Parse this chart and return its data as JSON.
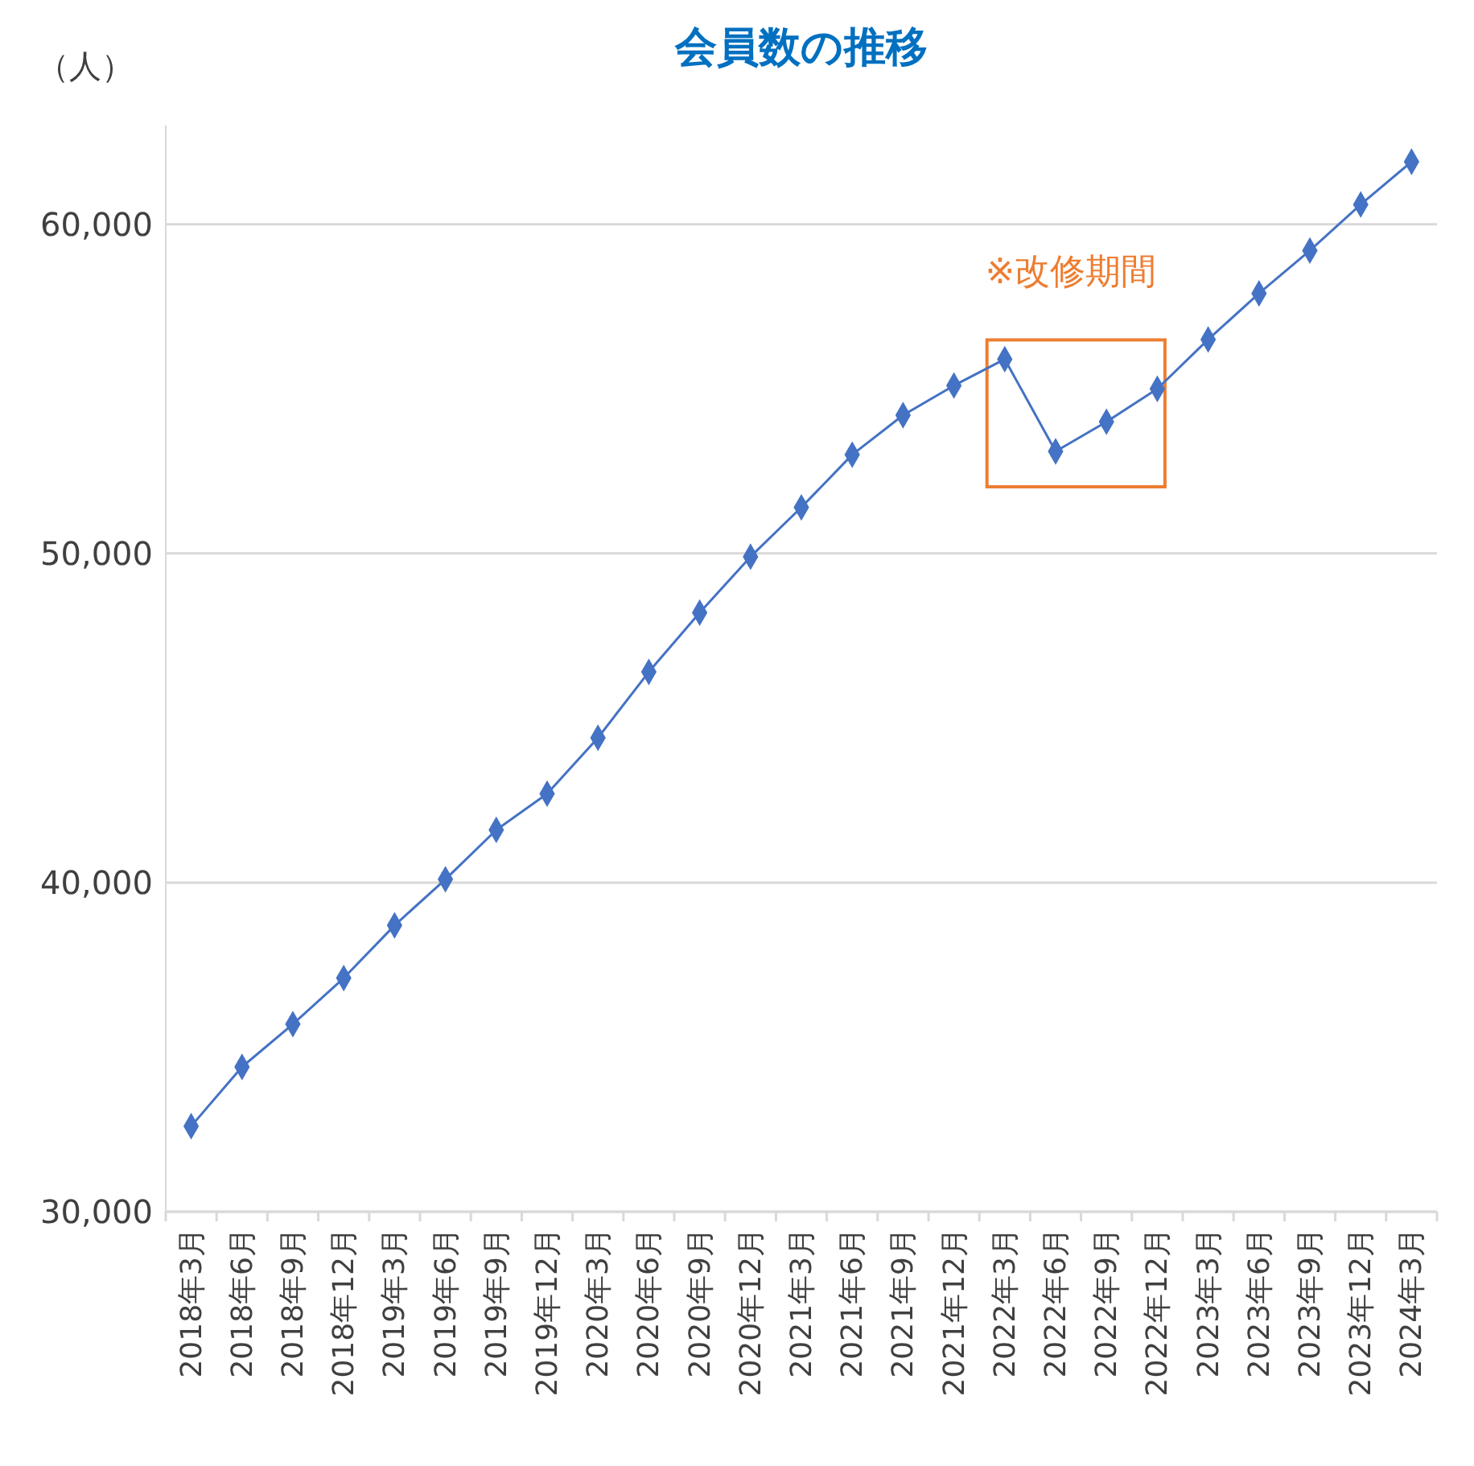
{
  "chart_data": {
    "type": "line",
    "title": "会員数の推移",
    "ylabel": "（人）",
    "categories": [
      "2018年3月",
      "2018年6月",
      "2018年9月",
      "2018年12月",
      "2019年3月",
      "2019年6月",
      "2019年9月",
      "2019年12月",
      "2020年3月",
      "2020年6月",
      "2020年9月",
      "2020年12月",
      "2021年3月",
      "2021年6月",
      "2021年9月",
      "2021年12月",
      "2022年3月",
      "2022年6月",
      "2022年9月",
      "2022年12月",
      "2023年3月",
      "2023年6月",
      "2023年9月",
      "2023年12月",
      "2024年3月"
    ],
    "series": [
      {
        "color": "#4472c4",
        "values": [
          32600,
          34400,
          35700,
          37100,
          38700,
          40100,
          41600,
          42700,
          44400,
          46400,
          48200,
          49900,
          51400,
          53000,
          54200,
          55100,
          55900,
          53100,
          54000,
          55000,
          56500,
          57900,
          59200,
          60600,
          61900
        ]
      }
    ],
    "ylim": [
      30000,
      63000
    ],
    "yticks": [
      {
        "value": 30000,
        "label": "30,000"
      },
      {
        "value": 40000,
        "label": "40,000"
      },
      {
        "value": 50000,
        "label": "50,000"
      },
      {
        "value": 60000,
        "label": "60,000"
      }
    ],
    "grid": "y",
    "marker": "diamond",
    "line_style": "solid",
    "annotations": [
      "※改修期間"
    ]
  }
}
